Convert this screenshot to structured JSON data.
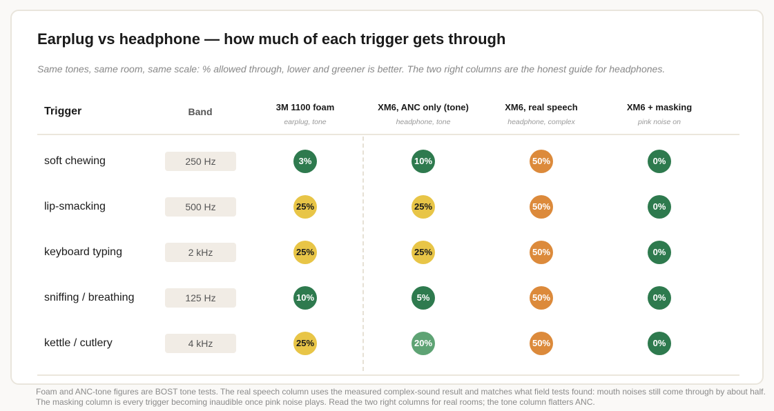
{
  "title": "Earplug vs headphone — how much of each trigger gets through",
  "subtitle": "Same tones, same room, same scale: % allowed through, lower and greener is better. The two right columns are the honest guide for headphones.",
  "headers": {
    "trigger": "Trigger",
    "band": "Band",
    "columns": [
      {
        "label": "3M 1100 foam",
        "sub": "earplug, tone"
      },
      {
        "label": "XM6, ANC only (tone)",
        "sub": "headphone, tone"
      },
      {
        "label": "XM6, real speech",
        "sub": "headphone, complex"
      },
      {
        "label": "XM6 + masking",
        "sub": "pink noise on"
      }
    ]
  },
  "colors": {
    "dark_green": "#2e7a4e",
    "light_green": "#5ea374",
    "yellow": "#e8c547",
    "orange": "#dc8a3b"
  },
  "rows": [
    {
      "trigger": "soft chewing",
      "band": "250 Hz",
      "cells": [
        {
          "value": "3%",
          "level": "dark_green"
        },
        {
          "value": "10%",
          "level": "dark_green"
        },
        {
          "value": "50%",
          "level": "orange"
        },
        {
          "value": "0%",
          "level": "dark_green"
        }
      ]
    },
    {
      "trigger": "lip-smacking",
      "band": "500 Hz",
      "cells": [
        {
          "value": "25%",
          "level": "yellow"
        },
        {
          "value": "25%",
          "level": "yellow"
        },
        {
          "value": "50%",
          "level": "orange"
        },
        {
          "value": "0%",
          "level": "dark_green"
        }
      ]
    },
    {
      "trigger": "keyboard typing",
      "band": "2 kHz",
      "cells": [
        {
          "value": "25%",
          "level": "yellow"
        },
        {
          "value": "25%",
          "level": "yellow"
        },
        {
          "value": "50%",
          "level": "orange"
        },
        {
          "value": "0%",
          "level": "dark_green"
        }
      ]
    },
    {
      "trigger": "sniffing / breathing",
      "band": "125 Hz",
      "cells": [
        {
          "value": "10%",
          "level": "dark_green"
        },
        {
          "value": "5%",
          "level": "dark_green"
        },
        {
          "value": "50%",
          "level": "orange"
        },
        {
          "value": "0%",
          "level": "dark_green"
        }
      ]
    },
    {
      "trigger": "kettle / cutlery",
      "band": "4 kHz",
      "cells": [
        {
          "value": "25%",
          "level": "yellow"
        },
        {
          "value": "20%",
          "level": "light_green"
        },
        {
          "value": "50%",
          "level": "orange"
        },
        {
          "value": "0%",
          "level": "dark_green"
        }
      ]
    }
  ],
  "footnote": "Foam and ANC-tone figures are BOST tone tests. The real speech column uses the measured complex-sound result and matches what field tests found: mouth noises still come through by about half. The masking column is every trigger becoming inaudible once pink noise plays. Read the two right columns for real rooms; the tone column flatters ANC."
}
